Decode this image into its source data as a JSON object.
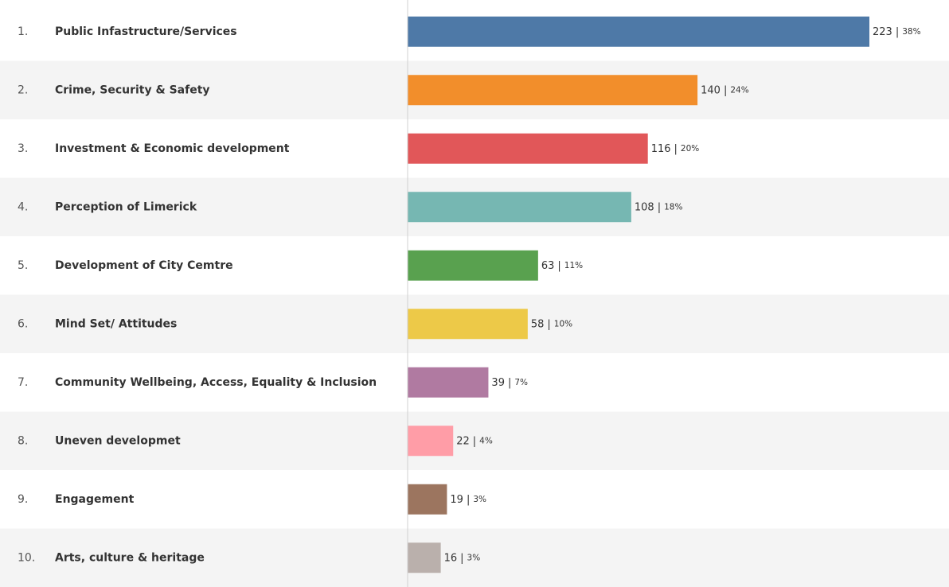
{
  "chart_data": {
    "type": "bar",
    "orientation": "horizontal",
    "ranks": [
      "1.",
      "2.",
      "3.",
      "4.",
      "5.",
      "6.",
      "7.",
      "8.",
      "9.",
      "10."
    ],
    "categories": [
      "Public Infastructure/Services",
      "Crime, Security & Safety",
      "Investment & Economic development",
      "Perception of Limerick",
      "Development of City Cemtre",
      "Mind Set/ Attitudes",
      "Community Wellbeing, Access, Equality & Inclusion",
      "Uneven developmet",
      "Engagement",
      "Arts, culture & heritage"
    ],
    "values": [
      223,
      140,
      116,
      108,
      63,
      58,
      39,
      22,
      19,
      16
    ],
    "percent_labels": [
      "38%",
      "24%",
      "20%",
      "18%",
      "11%",
      "10%",
      "7%",
      "4%",
      "3%",
      "3%"
    ],
    "label_separator": "|",
    "colors": [
      "#4e79a7",
      "#f28e2b",
      "#e15759",
      "#76b7b2",
      "#59a14f",
      "#edc948",
      "#b07aa1",
      "#ff9da7",
      "#9c755f",
      "#bab0ac"
    ]
  }
}
